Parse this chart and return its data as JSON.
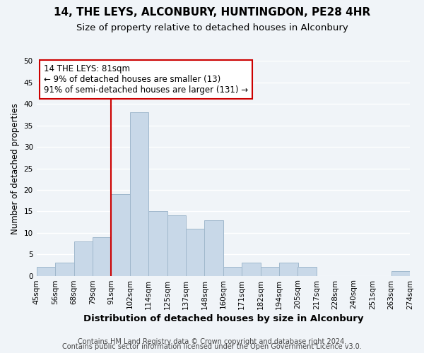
{
  "title": "14, THE LEYS, ALCONBURY, HUNTINGDON, PE28 4HR",
  "subtitle": "Size of property relative to detached houses in Alconbury",
  "xlabel": "Distribution of detached houses by size in Alconbury",
  "ylabel": "Number of detached properties",
  "footer_line1": "Contains HM Land Registry data © Crown copyright and database right 2024.",
  "footer_line2": "Contains public sector information licensed under the Open Government Licence v3.0.",
  "bin_labels": [
    "45sqm",
    "56sqm",
    "68sqm",
    "79sqm",
    "91sqm",
    "102sqm",
    "114sqm",
    "125sqm",
    "137sqm",
    "148sqm",
    "160sqm",
    "171sqm",
    "182sqm",
    "194sqm",
    "205sqm",
    "217sqm",
    "228sqm",
    "240sqm",
    "251sqm",
    "263sqm",
    "274sqm"
  ],
  "bar_values": [
    2,
    3,
    8,
    9,
    19,
    38,
    15,
    14,
    11,
    13,
    2,
    3,
    2,
    3,
    2,
    0,
    0,
    0,
    0,
    1
  ],
  "ylim": [
    0,
    50
  ],
  "bar_color": "#c8d8e8",
  "bar_edge_color": "#a0b8cc",
  "vline_color": "#cc0000",
  "annotation_text": "14 THE LEYS: 81sqm\n← 9% of detached houses are smaller (13)\n91% of semi-detached houses are larger (131) →",
  "annotation_box_color": "#ffffff",
  "annotation_box_edge": "#cc0000",
  "background_color": "#f0f4f8",
  "plot_bg_color": "#f0f4f8",
  "grid_color": "#ffffff",
  "title_fontsize": 11,
  "subtitle_fontsize": 9.5,
  "xlabel_fontsize": 9.5,
  "ylabel_fontsize": 8.5,
  "tick_fontsize": 7.5,
  "annotation_fontsize": 8.5,
  "footer_fontsize": 7
}
